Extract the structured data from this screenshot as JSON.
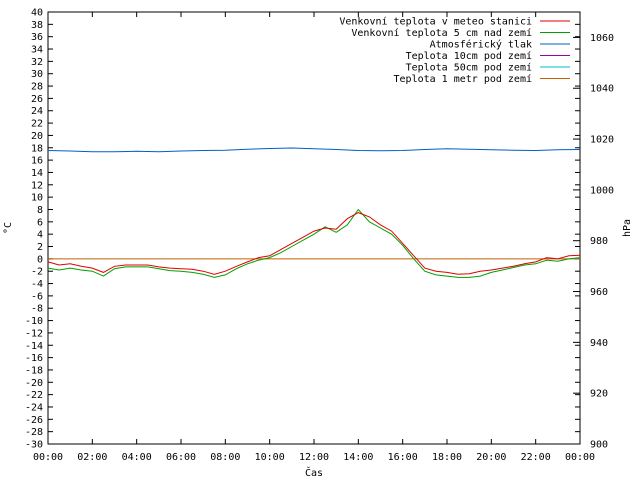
{
  "chart_data": {
    "type": "line",
    "xlabel": "Čas",
    "ylabel_left": "°C",
    "ylabel_right": "hPa",
    "ylim_left": [
      -30,
      40
    ],
    "ylim_right": [
      900,
      1070
    ],
    "xlim_hours": [
      0,
      24
    ],
    "grid": false,
    "legend_position": "top-right",
    "x_ticks": [
      "00:00",
      "02:00",
      "04:00",
      "06:00",
      "08:00",
      "10:00",
      "12:00",
      "14:00",
      "16:00",
      "18:00",
      "20:00",
      "22:00",
      "00:00"
    ],
    "y_ticks_left": [
      -30,
      -28,
      -26,
      -24,
      -22,
      -20,
      -18,
      -16,
      -14,
      -12,
      -10,
      -8,
      -6,
      -4,
      -2,
      0,
      2,
      4,
      6,
      8,
      10,
      12,
      14,
      16,
      18,
      20,
      22,
      24,
      26,
      28,
      30,
      32,
      34,
      36,
      38,
      40
    ],
    "y_ticks_right": [
      900,
      920,
      940,
      960,
      980,
      1000,
      1020,
      1040,
      1060
    ],
    "series": [
      {
        "name": "Venkovní teplota v meteo stanici",
        "color": "#e00000",
        "axis": "left",
        "x": [
          0,
          0.5,
          1,
          1.5,
          2,
          2.5,
          3,
          3.5,
          4,
          4.5,
          5,
          5.5,
          6,
          6.5,
          7,
          7.5,
          8,
          8.5,
          9,
          9.5,
          10,
          10.5,
          11,
          11.5,
          12,
          12.5,
          13,
          13.5,
          14,
          14.5,
          15,
          15.5,
          16,
          16.5,
          17,
          17.5,
          18,
          18.5,
          19,
          19.5,
          20,
          20.5,
          21,
          21.5,
          22,
          22.5,
          23,
          23.5,
          24
        ],
        "y": [
          -0.5,
          -1.0,
          -0.8,
          -1.2,
          -1.5,
          -2.2,
          -1.2,
          -1.0,
          -1.0,
          -1.0,
          -1.3,
          -1.5,
          -1.6,
          -1.7,
          -2.0,
          -2.5,
          -2.0,
          -1.2,
          -0.5,
          0.2,
          0.5,
          1.5,
          2.5,
          3.5,
          4.5,
          5.0,
          4.8,
          6.5,
          7.5,
          6.8,
          5.5,
          4.5,
          2.5,
          0.5,
          -1.5,
          -2.0,
          -2.2,
          -2.5,
          -2.4,
          -2.0,
          -1.8,
          -1.5,
          -1.2,
          -0.8,
          -0.5,
          0.2,
          0.0,
          0.5,
          0.6
        ]
      },
      {
        "name": "Venkovní teplota 5 cm nad zemí",
        "color": "#00a000",
        "axis": "left",
        "x": [
          0,
          0.5,
          1,
          1.5,
          2,
          2.5,
          3,
          3.5,
          4,
          4.5,
          5,
          5.5,
          6,
          6.5,
          7,
          7.5,
          8,
          8.5,
          9,
          9.5,
          10,
          10.5,
          11,
          11.5,
          12,
          12.5,
          13,
          13.5,
          14,
          14.5,
          15,
          15.5,
          16,
          16.5,
          17,
          17.5,
          18,
          18.5,
          19,
          19.5,
          20,
          20.5,
          21,
          21.5,
          22,
          22.5,
          23,
          23.5,
          24
        ],
        "y": [
          -1.5,
          -1.8,
          -1.5,
          -1.8,
          -2.0,
          -2.8,
          -1.6,
          -1.3,
          -1.3,
          -1.3,
          -1.6,
          -1.9,
          -2.0,
          -2.2,
          -2.5,
          -3.0,
          -2.6,
          -1.6,
          -0.8,
          -0.2,
          0.2,
          1.0,
          2.0,
          3.0,
          4.0,
          5.2,
          4.3,
          5.5,
          8.0,
          6.0,
          5.0,
          4.0,
          2.2,
          0.0,
          -2.0,
          -2.6,
          -2.8,
          -3.0,
          -3.0,
          -2.8,
          -2.2,
          -1.8,
          -1.4,
          -1.0,
          -0.8,
          -0.2,
          -0.4,
          0.0,
          0.2
        ]
      },
      {
        "name": "Atmosférický tlak",
        "color": "#0060c0",
        "axis": "right",
        "x": [
          0,
          1,
          2,
          3,
          4,
          5,
          6,
          7,
          8,
          9,
          10,
          11,
          12,
          13,
          14,
          15,
          16,
          17,
          18,
          19,
          20,
          21,
          22,
          23,
          24
        ],
        "y": [
          1015.5,
          1015.3,
          1015.0,
          1015.0,
          1015.2,
          1015.0,
          1015.3,
          1015.5,
          1015.6,
          1016.0,
          1016.3,
          1016.5,
          1016.2,
          1015.9,
          1015.5,
          1015.4,
          1015.5,
          1015.9,
          1016.2,
          1016.0,
          1015.8,
          1015.6,
          1015.5,
          1015.8,
          1015.9
        ]
      },
      {
        "name": "Teplota 10cm pod zemí",
        "color": "#a000a0",
        "axis": "left",
        "x": [],
        "y": []
      },
      {
        "name": "Teplota 50cm pod zemí",
        "color": "#00c0c0",
        "axis": "left",
        "x": [],
        "y": []
      },
      {
        "name": "Teplota 1 metr pod zemí",
        "color": "#c06000",
        "axis": "left",
        "x": [
          0,
          24
        ],
        "y": [
          0.0,
          0.0
        ]
      }
    ]
  }
}
